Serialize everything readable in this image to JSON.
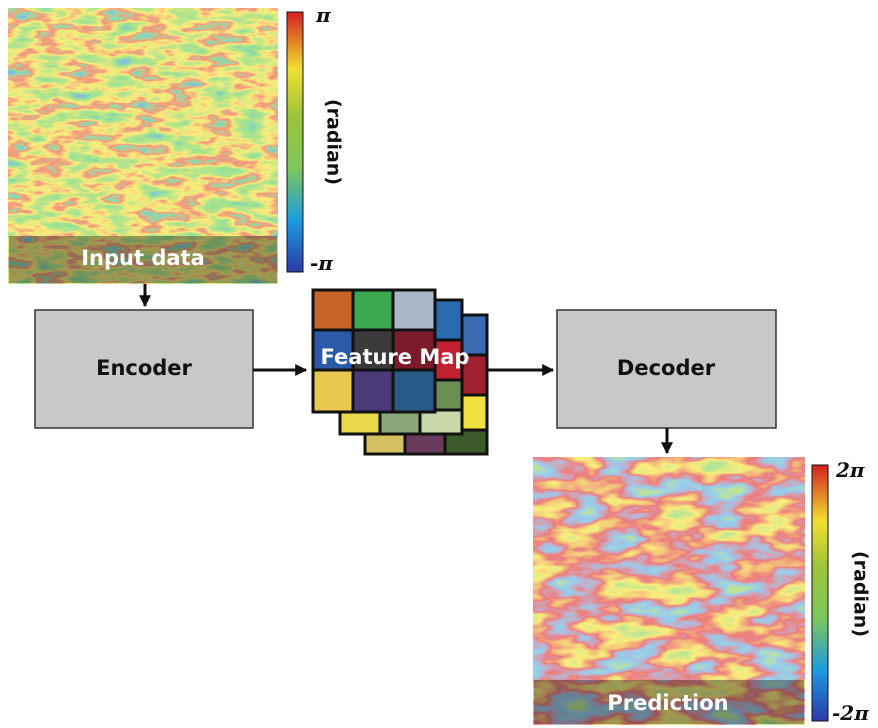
{
  "input": {
    "label": "Input data",
    "colorbar": {
      "max": "π",
      "min": "-π",
      "unit": "(radian)"
    }
  },
  "encoder": {
    "label": "Encoder"
  },
  "feature_map": {
    "label": "Feature Map"
  },
  "decoder": {
    "label": "Decoder"
  },
  "prediction": {
    "label": "Prediction",
    "colorbar": {
      "max": "2π",
      "min": "-2π",
      "unit": "(radian)"
    }
  }
}
